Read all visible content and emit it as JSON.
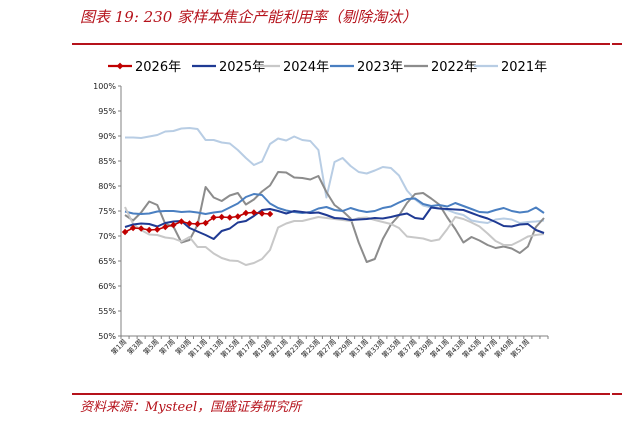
{
  "header": {
    "title": "图表 19:  230 家样本焦企产能利用率（剔除淘汰）"
  },
  "footer": {
    "source": "资料来源：Mysteel，国盛证券研究所"
  },
  "chart_data": {
    "type": "line",
    "title": "",
    "xlabel": "",
    "ylabel": "",
    "ylim": [
      50,
      100
    ],
    "y_ticks": [
      50,
      55,
      60,
      65,
      70,
      75,
      80,
      85,
      90,
      95,
      100
    ],
    "y_tick_labels": [
      "50%",
      "55%",
      "60%",
      "65%",
      "70%",
      "75%",
      "80%",
      "85%",
      "90%",
      "95%",
      "100%"
    ],
    "x_tick_labels": [
      "第1周",
      "第3周",
      "第5周",
      "第7周",
      "第9周",
      "第11周",
      "第13周",
      "第15周",
      "第17周",
      "第19周",
      "第21周",
      "第23周",
      "第25周",
      "第27周",
      "第29周",
      "第31周",
      "第33周",
      "第35周",
      "第37周",
      "第39周",
      "第41周",
      "第43周",
      "第45周",
      "第47周",
      "第49周",
      "第51周"
    ],
    "weeks": 53,
    "grid": false,
    "legend_position": "top",
    "series": [
      {
        "name": "2026年",
        "color": "#c00000",
        "marker": "diamond",
        "values": [
          70.8,
          71.6,
          71.5,
          71.2,
          71.3,
          71.8,
          72.2,
          72.9,
          72.5,
          72.4,
          72.6,
          73.7,
          73.8,
          73.7,
          73.9,
          74.6,
          74.7,
          74.5,
          74.4
        ]
      },
      {
        "name": "2025年",
        "color": "#1f3a93",
        "values": [
          71.8,
          72.3,
          72.5,
          72.4,
          71.9,
          72.6,
          72.9,
          73.0,
          71.6,
          70.9,
          70.2,
          69.4,
          71.0,
          71.5,
          72.7,
          73.0,
          74.0,
          75.2,
          75.4,
          75.0,
          74.5,
          75.0,
          74.8,
          74.6,
          74.7,
          74.2,
          73.6,
          73.5,
          73.2,
          73.3,
          73.4,
          73.6,
          73.5,
          73.8,
          74.2,
          74.5,
          73.6,
          73.4,
          75.7,
          75.5,
          75.4,
          75.3,
          75.2,
          74.6,
          74.0,
          73.5,
          72.8,
          72.0,
          71.9,
          72.3,
          72.4,
          71.2,
          70.6
        ]
      },
      {
        "name": "2024年",
        "color": "#c8c8c8",
        "values": [
          75.8,
          72.4,
          71.2,
          70.3,
          70.2,
          69.7,
          69.5,
          68.9,
          69.8,
          67.8,
          67.8,
          66.5,
          65.6,
          65.1,
          65.0,
          64.2,
          64.6,
          65.4,
          67.2,
          71.7,
          72.5,
          73.0,
          73.0,
          73.4,
          73.8,
          73.6,
          73.4,
          73.2,
          73.0,
          73.6,
          73.7,
          73.2,
          72.8,
          72.4,
          71.6,
          69.9,
          69.7,
          69.5,
          69.0,
          69.3,
          71.4,
          73.8,
          73.4,
          72.7,
          71.9,
          70.5,
          69.0,
          68.2,
          68.2,
          69.0,
          69.9,
          70.2,
          70.4
        ]
      },
      {
        "name": "2023年",
        "color": "#4a7fc1",
        "values": [
          74.9,
          74.5,
          74.4,
          74.5,
          74.9,
          75.0,
          75.0,
          74.8,
          74.9,
          74.7,
          74.4,
          74.7,
          74.9,
          75.7,
          76.5,
          77.8,
          78.4,
          78.2,
          76.5,
          75.6,
          75.1,
          74.8,
          74.6,
          74.8,
          75.5,
          75.8,
          75.2,
          75.0,
          75.6,
          75.1,
          74.8,
          75.0,
          75.6,
          75.9,
          76.7,
          77.4,
          77.5,
          76.4,
          76.0,
          76.2,
          75.9,
          76.6,
          76.0,
          75.4,
          74.8,
          74.7,
          75.2,
          75.6,
          75.0,
          74.7,
          74.9,
          75.7,
          74.6
        ]
      },
      {
        "name": "2022年",
        "color": "#8c8c8c",
        "values": [
          74.2,
          73.1,
          74.7,
          76.9,
          76.2,
          72.4,
          71.9,
          68.7,
          69.2,
          72.2,
          79.8,
          77.7,
          77.0,
          78.1,
          78.6,
          76.3,
          77.3,
          78.9,
          80.1,
          82.8,
          82.7,
          81.7,
          81.6,
          81.3,
          82.0,
          78.8,
          76.2,
          75.0,
          73.5,
          68.7,
          64.8,
          65.4,
          69.4,
          72.3,
          74.1,
          76.6,
          78.4,
          78.6,
          77.5,
          76.3,
          73.7,
          71.4,
          68.7,
          69.8,
          69.1,
          68.2,
          67.6,
          67.9,
          67.5,
          66.6,
          67.9,
          71.8,
          73.6
        ]
      },
      {
        "name": "2021年",
        "color": "#b8cde4",
        "values": [
          89.7,
          89.7,
          89.6,
          89.9,
          90.2,
          90.9,
          91.0,
          91.5,
          91.6,
          91.4,
          89.2,
          89.2,
          88.7,
          88.5,
          87.2,
          85.6,
          84.2,
          84.9,
          88.4,
          89.5,
          89.1,
          89.9,
          89.2,
          89.0,
          87.2,
          77.7,
          84.8,
          85.6,
          84.0,
          82.8,
          82.5,
          83.1,
          83.8,
          83.6,
          82.1,
          79.1,
          77.3,
          76.1,
          75.7,
          75.5,
          75.2,
          74.6,
          74.2,
          73.1,
          72.8,
          72.6,
          73.3,
          73.5,
          73.3,
          72.6,
          72.8,
          72.9,
          73.1
        ]
      }
    ]
  }
}
